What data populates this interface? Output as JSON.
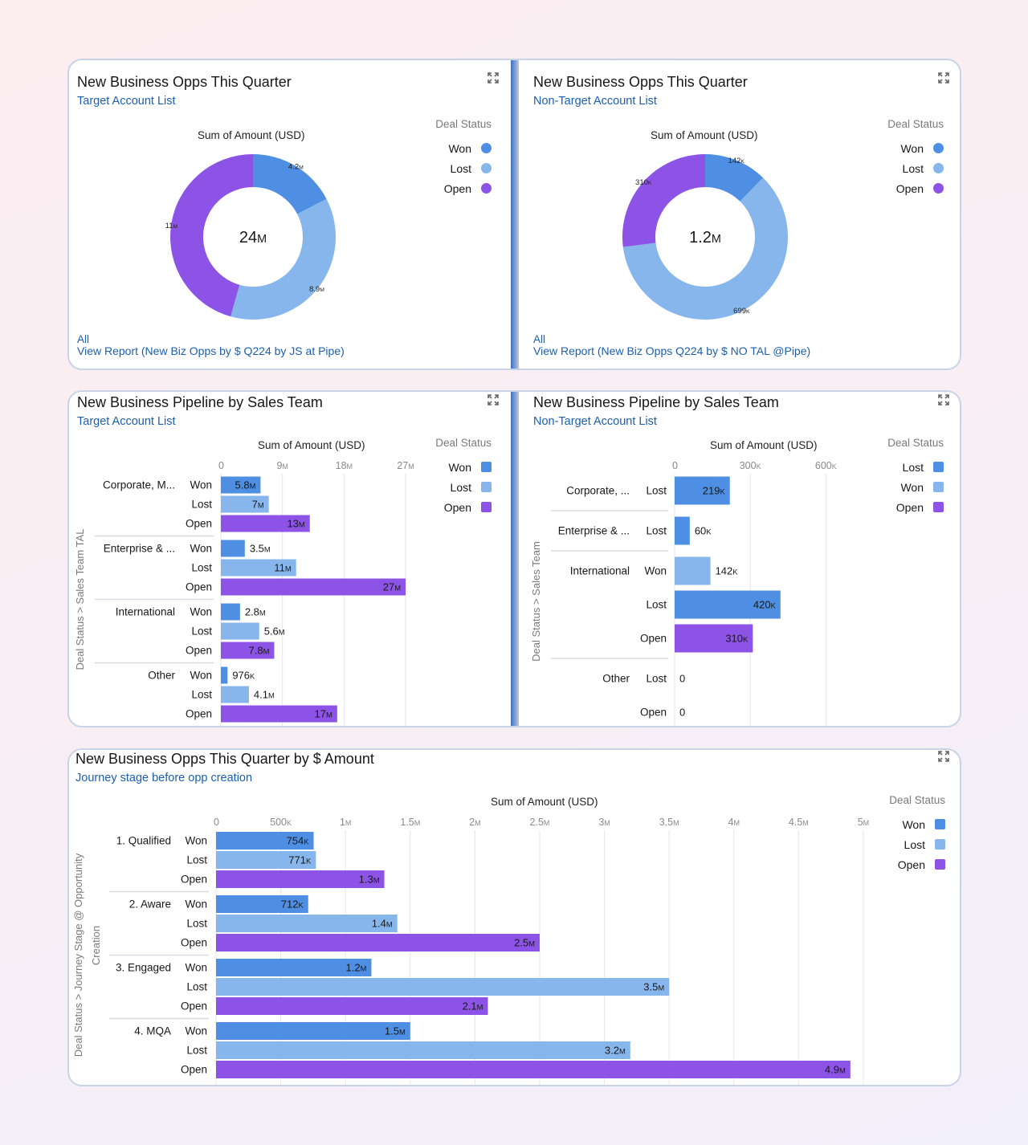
{
  "colors": {
    "won": "#4f8fe3",
    "lost": "#86b6ec",
    "open": "#8c53e6",
    "tick": "#8a8a8a",
    "grid": "#e6e6ea",
    "link": "#1b5fb0"
  },
  "icons": {
    "expand": "expand-icon"
  },
  "chart_data": [
    {
      "id": "donut-target",
      "type": "pie",
      "title": "New Business Opps This Quarter",
      "subtitle": "Target Account List",
      "axis_title": "Sum of Amount (USD)",
      "center_label": "24M",
      "legend_title": "Deal Status",
      "legend": [
        {
          "label": "Won",
          "color": "#4f8fe3"
        },
        {
          "label": "Lost",
          "color": "#86b6ec"
        },
        {
          "label": "Open",
          "color": "#8c53e6"
        }
      ],
      "slices": [
        {
          "label": "Won",
          "value": 4.2,
          "display": "4.2M",
          "color": "#4f8fe3"
        },
        {
          "label": "Lost",
          "value": 8.9,
          "display": "8.9M",
          "color": "#86b6ec"
        },
        {
          "label": "Open",
          "value": 11,
          "display": "11M",
          "color": "#8c53e6"
        }
      ],
      "units": "M",
      "footer_filter": "All",
      "footer_link": "View Report (New Biz Opps by $ Q224 by JS at Pipe)"
    },
    {
      "id": "donut-nontarget",
      "type": "pie",
      "title": "New Business Opps This Quarter",
      "subtitle": "Non-Target Account List",
      "axis_title": "Sum of Amount (USD)",
      "center_label": "1.2M",
      "legend_title": "Deal Status",
      "legend": [
        {
          "label": "Won",
          "color": "#4f8fe3"
        },
        {
          "label": "Lost",
          "color": "#86b6ec"
        },
        {
          "label": "Open",
          "color": "#8c53e6"
        }
      ],
      "slices": [
        {
          "label": "Won",
          "value": 142,
          "display": "142K",
          "color": "#4f8fe3"
        },
        {
          "label": "Lost",
          "value": 699,
          "display": "699K",
          "color": "#86b6ec"
        },
        {
          "label": "Open",
          "value": 310,
          "display": "310K",
          "color": "#8c53e6"
        }
      ],
      "units": "K",
      "footer_filter": "All",
      "footer_link": "View Report (New Biz Opps Q224 by $ NO TAL @Pipe)"
    },
    {
      "id": "bar-target",
      "type": "bar",
      "orientation": "horizontal",
      "title": "New Business Pipeline by Sales Team",
      "subtitle": "Target Account List",
      "axis_title": "Sum of Amount (USD)",
      "ylabel": "Deal Status  >  Sales Team TAL",
      "xlim": [
        0,
        27
      ],
      "ticks": [
        {
          "v": 0,
          "label": "0"
        },
        {
          "v": 9,
          "label": "9M"
        },
        {
          "v": 18,
          "label": "18M"
        },
        {
          "v": 27,
          "label": "27M"
        }
      ],
      "grid": true,
      "legend_title": "Deal Status",
      "legend": [
        {
          "label": "Won",
          "color": "#4f8fe3"
        },
        {
          "label": "Lost",
          "color": "#86b6ec"
        },
        {
          "label": "Open",
          "color": "#8c53e6"
        }
      ],
      "groups": [
        {
          "name": "Corporate, M...",
          "bars": [
            {
              "status": "Won",
              "value": 5.8,
              "display": "5.8M",
              "color": "#4f8fe3"
            },
            {
              "status": "Lost",
              "value": 7,
              "display": "7M",
              "color": "#86b6ec"
            },
            {
              "status": "Open",
              "value": 13,
              "display": "13M",
              "color": "#8c53e6"
            }
          ]
        },
        {
          "name": "Enterprise & ...",
          "bars": [
            {
              "status": "Won",
              "value": 3.5,
              "display": "3.5M",
              "color": "#4f8fe3"
            },
            {
              "status": "Lost",
              "value": 11,
              "display": "11M",
              "color": "#86b6ec"
            },
            {
              "status": "Open",
              "value": 27,
              "display": "27M",
              "color": "#8c53e6"
            }
          ]
        },
        {
          "name": "International",
          "bars": [
            {
              "status": "Won",
              "value": 2.8,
              "display": "2.8M",
              "color": "#4f8fe3"
            },
            {
              "status": "Lost",
              "value": 5.6,
              "display": "5.6M",
              "color": "#86b6ec"
            },
            {
              "status": "Open",
              "value": 7.8,
              "display": "7.8M",
              "color": "#8c53e6"
            }
          ]
        },
        {
          "name": "Other",
          "bars": [
            {
              "status": "Won",
              "value": 0.976,
              "display": "976K",
              "color": "#4f8fe3"
            },
            {
              "status": "Lost",
              "value": 4.1,
              "display": "4.1M",
              "color": "#86b6ec"
            },
            {
              "status": "Open",
              "value": 17,
              "display": "17M",
              "color": "#8c53e6"
            }
          ]
        }
      ]
    },
    {
      "id": "bar-nontarget",
      "type": "bar",
      "orientation": "horizontal",
      "title": "New Business Pipeline by Sales Team",
      "subtitle": "Non-Target Account List",
      "axis_title": "Sum of Amount (USD)",
      "ylabel": "Deal Status  >  Sales Team",
      "xlim": [
        0,
        720
      ],
      "ticks": [
        {
          "v": 0,
          "label": "0"
        },
        {
          "v": 300,
          "label": "300K"
        },
        {
          "v": 600,
          "label": "600K"
        }
      ],
      "grid": true,
      "legend_title": "Deal Status",
      "legend": [
        {
          "label": "Lost",
          "color": "#4f8fe3"
        },
        {
          "label": "Won",
          "color": "#86b6ec"
        },
        {
          "label": "Open",
          "color": "#8c53e6"
        }
      ],
      "groups": [
        {
          "name": "Corporate, ...",
          "bars": [
            {
              "status": "Lost",
              "value": 219,
              "display": "219K",
              "color": "#4f8fe3"
            }
          ]
        },
        {
          "name": "Enterprise & ...",
          "bars": [
            {
              "status": "Lost",
              "value": 60,
              "display": "60K",
              "color": "#4f8fe3"
            }
          ]
        },
        {
          "name": "International",
          "bars": [
            {
              "status": "Won",
              "value": 142,
              "display": "142K",
              "color": "#86b6ec"
            },
            {
              "status": "Lost",
              "value": 420,
              "display": "420K",
              "color": "#4f8fe3"
            },
            {
              "status": "Open",
              "value": 310,
              "display": "310K",
              "color": "#8c53e6"
            }
          ]
        },
        {
          "name": "Other",
          "bars": [
            {
              "status": "Lost",
              "value": 0,
              "display": "0",
              "color": "#4f8fe3"
            },
            {
              "status": "Open",
              "value": 0,
              "display": "0",
              "color": "#8c53e6"
            }
          ]
        }
      ]
    },
    {
      "id": "bar-journey",
      "type": "bar",
      "orientation": "horizontal",
      "title": "New Business Opps This Quarter by $ Amount",
      "subtitle": "Journey stage before opp creation",
      "axis_title": "Sum of Amount (USD)",
      "ylabel": "Deal Status  >  Journey Stage @ Opportunity",
      "ylabel2": "Creation",
      "xlim": [
        0,
        5.05
      ],
      "ticks": [
        {
          "v": 0,
          "label": "0"
        },
        {
          "v": 0.5,
          "label": "500K"
        },
        {
          "v": 1,
          "label": "1M"
        },
        {
          "v": 1.5,
          "label": "1.5M"
        },
        {
          "v": 2,
          "label": "2M"
        },
        {
          "v": 2.5,
          "label": "2.5M"
        },
        {
          "v": 3,
          "label": "3M"
        },
        {
          "v": 3.5,
          "label": "3.5M"
        },
        {
          "v": 4,
          "label": "4M"
        },
        {
          "v": 4.5,
          "label": "4.5M"
        },
        {
          "v": 5,
          "label": "5M"
        }
      ],
      "grid": true,
      "legend_title": "Deal Status",
      "legend": [
        {
          "label": "Won",
          "color": "#4f8fe3"
        },
        {
          "label": "Lost",
          "color": "#86b6ec"
        },
        {
          "label": "Open",
          "color": "#8c53e6"
        }
      ],
      "groups": [
        {
          "name": "1. Qualified",
          "bars": [
            {
              "status": "Won",
              "value": 0.754,
              "display": "754K",
              "color": "#4f8fe3"
            },
            {
              "status": "Lost",
              "value": 0.771,
              "display": "771K",
              "color": "#86b6ec"
            },
            {
              "status": "Open",
              "value": 1.3,
              "display": "1.3M",
              "color": "#8c53e6"
            }
          ]
        },
        {
          "name": "2. Aware",
          "bars": [
            {
              "status": "Won",
              "value": 0.712,
              "display": "712K",
              "color": "#4f8fe3"
            },
            {
              "status": "Lost",
              "value": 1.4,
              "display": "1.4M",
              "color": "#86b6ec"
            },
            {
              "status": "Open",
              "value": 2.5,
              "display": "2.5M",
              "color": "#8c53e6"
            }
          ]
        },
        {
          "name": "3. Engaged",
          "bars": [
            {
              "status": "Won",
              "value": 1.2,
              "display": "1.2M",
              "color": "#4f8fe3"
            },
            {
              "status": "Lost",
              "value": 3.5,
              "display": "3.5M",
              "color": "#86b6ec"
            },
            {
              "status": "Open",
              "value": 2.1,
              "display": "2.1M",
              "color": "#8c53e6"
            }
          ]
        },
        {
          "name": "4. MQA",
          "bars": [
            {
              "status": "Won",
              "value": 1.5,
              "display": "1.5M",
              "color": "#4f8fe3"
            },
            {
              "status": "Lost",
              "value": 3.2,
              "display": "3.2M",
              "color": "#86b6ec"
            },
            {
              "status": "Open",
              "value": 4.9,
              "display": "4.9M",
              "color": "#8c53e6"
            }
          ]
        }
      ]
    }
  ]
}
